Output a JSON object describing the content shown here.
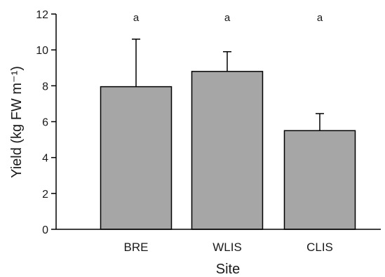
{
  "chart_data": {
    "type": "bar",
    "categories": [
      "BRE",
      "WLIS",
      "CLIS"
    ],
    "values": [
      7.95,
      8.8,
      5.5
    ],
    "error_upper": [
      10.6,
      9.9,
      6.45
    ],
    "significance_letters": [
      "a",
      "a",
      "a"
    ],
    "xlabel": "Site",
    "ylabel": "Yield (kg FW m⁻¹)",
    "ylim": [
      0,
      12
    ],
    "yticks": [
      0,
      2,
      4,
      6,
      8,
      10,
      12
    ],
    "grid": false,
    "legend": "none",
    "colors": {
      "bar_fill": "#a6a6a6",
      "bar_stroke": "#000000",
      "axis": "#000000"
    }
  }
}
